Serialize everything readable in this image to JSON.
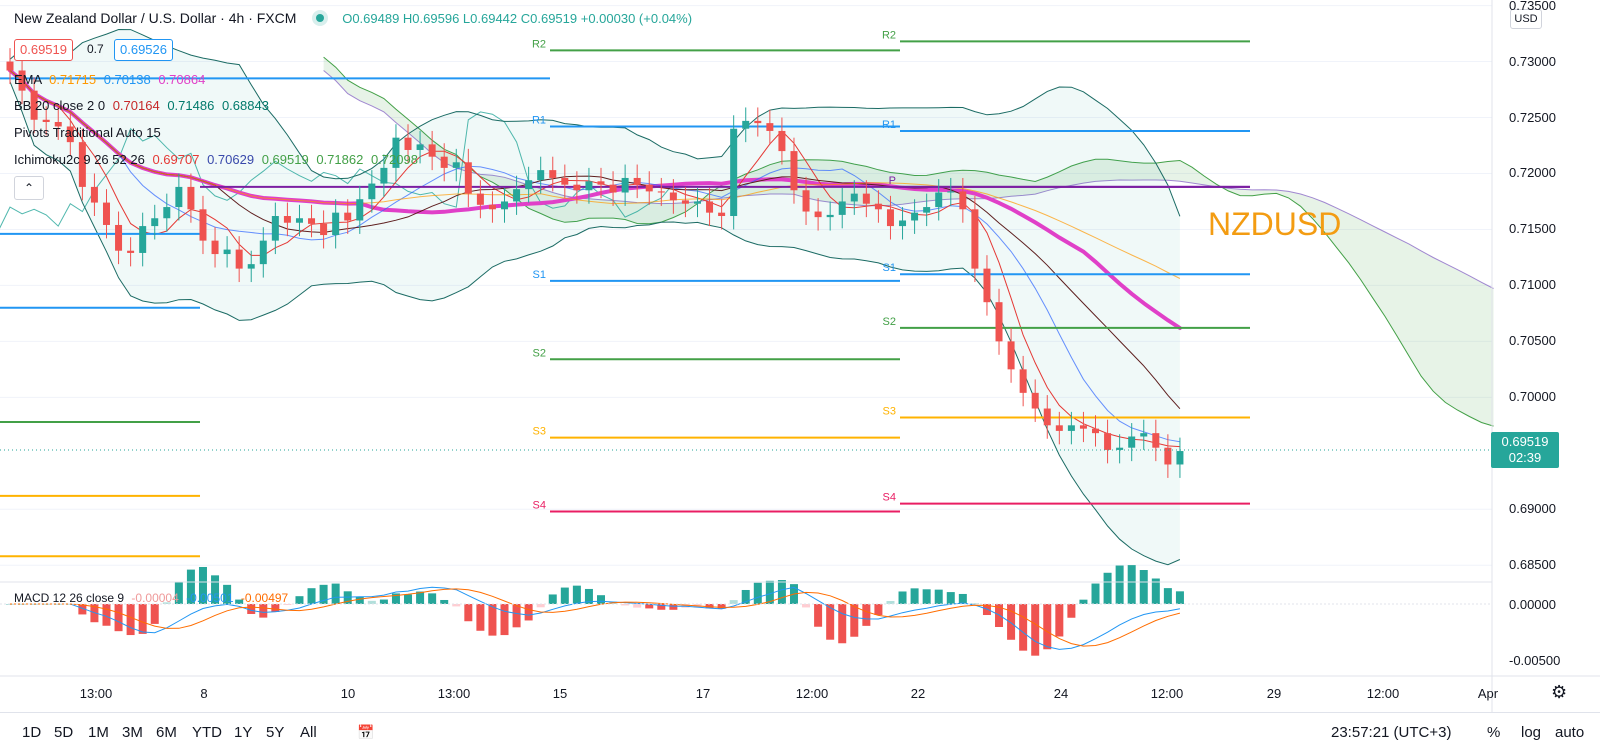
{
  "header": {
    "symbol_title": "New Zealand Dollar / U.S. Dollar · 4h · FXCM",
    "ohlc": "O0.69489 H0.69596 L0.69442 C0.69519 +0.00030 (+0.04%)",
    "sell_price": "0.69519",
    "spread": "0.7",
    "buy_price": "0.69526",
    "currency": "USD"
  },
  "indicators": {
    "ema": {
      "label": "EMA",
      "v1": "0.71715",
      "v2": "0.70138",
      "v3": "0.70864"
    },
    "bb": {
      "label": "BB 20 close 2 0",
      "v1": "0.70164",
      "v2": "0.71486",
      "v3": "0.68843"
    },
    "pivots": {
      "label": "Pivots Traditional Auto 15"
    },
    "ichimoku": {
      "label": "Ichimoku2c 9 26 52 26",
      "v1": "0.69707",
      "v2": "0.70629",
      "v3": "0.69519",
      "v4": "0.71862",
      "v5": "0.72098"
    },
    "macd": {
      "label": "MACD 12 26 close 9",
      "v1": "-0.00004",
      "v2": "-0.00501",
      "v3": "-0.00497"
    }
  },
  "watermark": "NZDUSD",
  "price_axis": {
    "labels": [
      "0.73500",
      "0.73000",
      "0.72500",
      "0.72000",
      "0.71500",
      "0.71000",
      "0.70500",
      "0.70000",
      "0.69000",
      "0.68500"
    ],
    "last_price": "0.69519",
    "countdown": "02:39",
    "macd_labels": [
      "0.00000",
      "-0.00500"
    ]
  },
  "time_axis": {
    "labels": [
      "13:00",
      "8",
      "10",
      "13:00",
      "15",
      "17",
      "12:00",
      "22",
      "24",
      "12:00",
      "29",
      "12:00",
      "Apr"
    ]
  },
  "pivot_labels": {
    "R2": "R2",
    "R1": "R1",
    "P": "P",
    "S1": "S1",
    "S2": "S2",
    "S3": "S3",
    "S4": "S4"
  },
  "toolbar": {
    "ranges": [
      "1D",
      "5D",
      "1M",
      "3M",
      "6M",
      "YTD",
      "1Y",
      "5Y",
      "All"
    ],
    "clock": "23:57:21 (UTC+3)",
    "percent": "%",
    "log": "log",
    "auto": "auto"
  },
  "colors": {
    "up": "#26a69a",
    "down": "#ef5350",
    "ema": "#e040c8",
    "pivot_r": "#43a047",
    "pivot_blue": "#2196f3",
    "pivot_orange": "#ffb300",
    "pivot_pink": "#e91e63",
    "pivot_p": "#7b1fa2",
    "watermark": "#f39c12"
  },
  "chart_data": {
    "type": "candlestick",
    "price_range": [
      0.6835,
      0.7355
    ],
    "candles_close_approx": [
      0.7292,
      0.7274,
      0.7248,
      0.7246,
      0.7242,
      0.7228,
      0.7188,
      0.7174,
      0.7154,
      0.7131,
      0.7129,
      0.7153,
      0.716,
      0.717,
      0.7188,
      0.7168,
      0.714,
      0.7128,
      0.7132,
      0.7115,
      0.7119,
      0.714,
      0.7162,
      0.7156,
      0.716,
      0.7155,
      0.7145,
      0.7165,
      0.7158,
      0.7177,
      0.7191,
      0.7205,
      0.7232,
      0.7221,
      0.7226,
      0.7215,
      0.7205,
      0.721,
      0.7182,
      0.7172,
      0.7168,
      0.7175,
      0.7186,
      0.7194,
      0.7203,
      0.7196,
      0.719,
      0.7185,
      0.7193,
      0.719,
      0.7183,
      0.7196,
      0.719,
      0.7184,
      0.7183,
      0.7176,
      0.7173,
      0.7175,
      0.7165,
      0.7162,
      0.724,
      0.7247,
      0.7245,
      0.7238,
      0.722,
      0.7185,
      0.7166,
      0.7161,
      0.7163,
      0.7175,
      0.7182,
      0.7173,
      0.7168,
      0.7153,
      0.7158,
      0.7165,
      0.717,
      0.7183,
      0.7184,
      0.7168,
      0.7115,
      0.7085,
      0.705,
      0.7025,
      0.7004,
      0.699,
      0.6975,
      0.697,
      0.6975,
      0.6972,
      0.6968,
      0.6953,
      0.6955,
      0.6965,
      0.6968,
      0.6955,
      0.694,
      0.6952
    ],
    "pivot_levels": {
      "segment1": {
        "S1": 0.708,
        "S2": 0.6978,
        "S3": 0.6858
      },
      "segment2": {
        "R2": 0.731,
        "R1": 0.7242,
        "S1": 0.7104,
        "S2": 0.7034,
        "S3": 0.6964,
        "S4": 0.6898
      },
      "segment3": {
        "R2": 0.7318,
        "R1": 0.7238,
        "P": 0.7188,
        "S1": 0.711,
        "S2": 0.7062,
        "S3": 0.6982,
        "S4": 0.6905
      }
    }
  }
}
